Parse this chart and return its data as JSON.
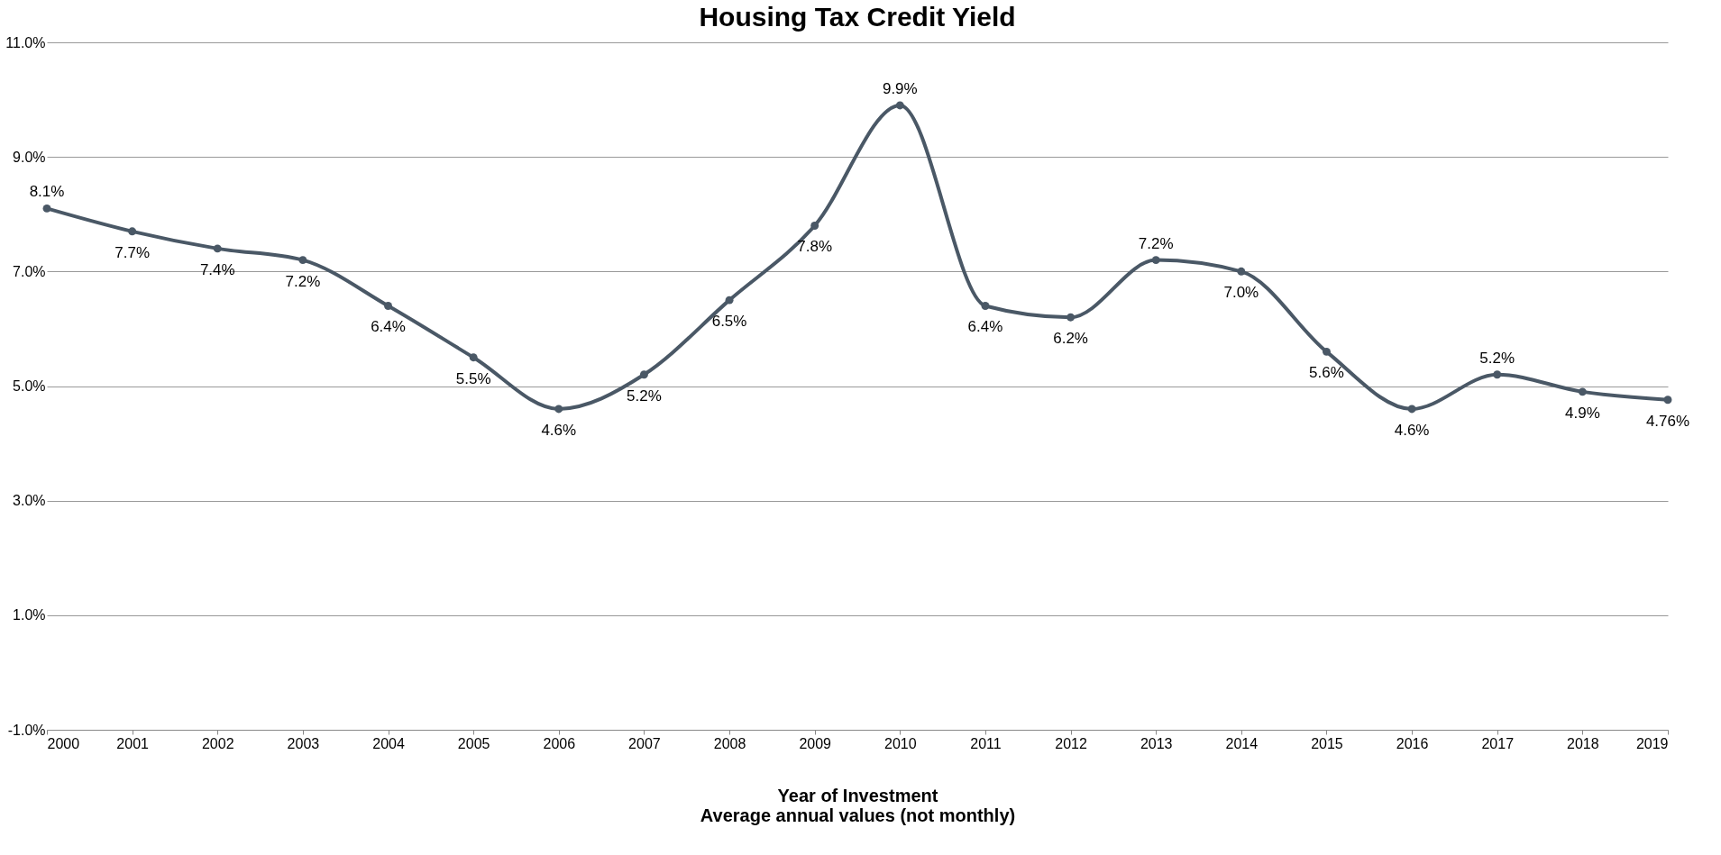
{
  "chart_data": {
    "type": "line",
    "title": "Housing Tax Credit Yield",
    "xlabel": "Year of Investment",
    "annotations": [
      "Average annual values (not monthly)"
    ],
    "categories": [
      "2000",
      "2001",
      "2002",
      "2003",
      "2004",
      "2005",
      "2006",
      "2007",
      "2008",
      "2009",
      "2010",
      "2011",
      "2012",
      "2013",
      "2014",
      "2015",
      "2016",
      "2017",
      "2018",
      "2019"
    ],
    "series": [
      {
        "color": "#4a5866",
        "values": [
          8.1,
          7.7,
          7.4,
          7.2,
          6.4,
          5.5,
          4.6,
          5.2,
          6.5,
          7.8,
          9.9,
          6.4,
          6.2,
          7.2,
          7.0,
          5.6,
          4.6,
          5.2,
          4.9,
          4.76
        ]
      }
    ],
    "value_labels": [
      "8.1%",
      "7.7%",
      "7.4%",
      "7.2%",
      "6.4%",
      "5.5%",
      "4.6%",
      "5.2%",
      "6.5%",
      "7.8%",
      "9.9%",
      "6.4%",
      "6.2%",
      "7.2%",
      "7.0%",
      "5.6%",
      "4.6%",
      "5.2%",
      "4.9%",
      "4.76%"
    ],
    "ylim": [
      -1,
      11
    ],
    "yticks": [
      {
        "value": -1,
        "label": "-1.0%"
      },
      {
        "value": 1,
        "label": "1.0%"
      },
      {
        "value": 3,
        "label": "3.0%"
      },
      {
        "value": 5,
        "label": "5.0%"
      },
      {
        "value": 7,
        "label": "7.0%"
      },
      {
        "value": 9,
        "label": "9.0%"
      },
      {
        "value": 11,
        "label": "11.0%"
      }
    ],
    "grid": "y",
    "marker": "circle",
    "line_style": "solid"
  }
}
